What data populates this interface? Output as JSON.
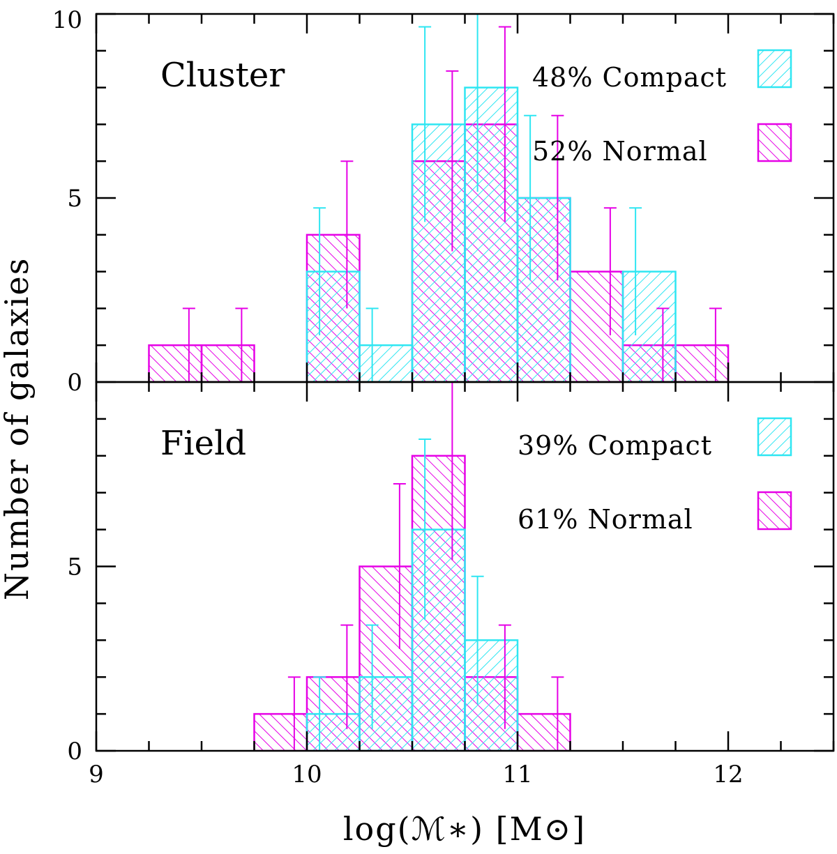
{
  "chart_data": {
    "type": "bar",
    "xlabel": "log(ℳ∗)  [M⊙]",
    "ylabel": "Number of galaxies",
    "xlim": [
      9,
      12.5
    ],
    "x_ticks": [
      "9",
      "10",
      "11",
      "12"
    ],
    "bin_width": 0.25,
    "colors": {
      "compact": "#2ee6f2",
      "normal": "#e600e6"
    },
    "panels": [
      {
        "name": "Cluster",
        "ylim": [
          0,
          10
        ],
        "y_ticks": [
          "0",
          "5",
          "10"
        ],
        "legend": [
          {
            "text": "48% Compact",
            "series": "compact"
          },
          {
            "text": "52% Normal",
            "series": "normal"
          }
        ],
        "series": [
          {
            "name": "compact",
            "bins": [
              {
                "x0": 10.0,
                "value": 3,
                "err": 1.73
              },
              {
                "x0": 10.25,
                "value": 1,
                "err": 1.0
              },
              {
                "x0": 10.5,
                "value": 7,
                "err": 2.65
              },
              {
                "x0": 10.75,
                "value": 8,
                "err": 2.83
              },
              {
                "x0": 11.0,
                "value": 5,
                "err": 2.24
              },
              {
                "x0": 11.5,
                "value": 3,
                "err": 1.73
              }
            ]
          },
          {
            "name": "normal",
            "bins": [
              {
                "x0": 9.25,
                "value": 1,
                "err": 1.0
              },
              {
                "x0": 9.5,
                "value": 1,
                "err": 1.0
              },
              {
                "x0": 10.0,
                "value": 4,
                "err": 2.0
              },
              {
                "x0": 10.5,
                "value": 6,
                "err": 2.45
              },
              {
                "x0": 10.75,
                "value": 7,
                "err": 2.65
              },
              {
                "x0": 11.0,
                "value": 5,
                "err": 2.24
              },
              {
                "x0": 11.25,
                "value": 3,
                "err": 1.73
              },
              {
                "x0": 11.5,
                "value": 1,
                "err": 1.0
              },
              {
                "x0": 11.75,
                "value": 1,
                "err": 1.0
              }
            ]
          }
        ]
      },
      {
        "name": "Field",
        "ylim": [
          0,
          10
        ],
        "y_ticks": [
          "0",
          "5"
        ],
        "legend": [
          {
            "text": "39% Compact",
            "series": "compact"
          },
          {
            "text": "61%  Normal",
            "series": "normal"
          }
        ],
        "series": [
          {
            "name": "compact",
            "bins": [
              {
                "x0": 10.0,
                "value": 1,
                "err": 1.0
              },
              {
                "x0": 10.25,
                "value": 2,
                "err": 1.41
              },
              {
                "x0": 10.5,
                "value": 6,
                "err": 2.45
              },
              {
                "x0": 10.75,
                "value": 3,
                "err": 1.73
              }
            ]
          },
          {
            "name": "normal",
            "bins": [
              {
                "x0": 9.75,
                "value": 1,
                "err": 1.0
              },
              {
                "x0": 10.0,
                "value": 2,
                "err": 1.41
              },
              {
                "x0": 10.25,
                "value": 5,
                "err": 2.24
              },
              {
                "x0": 10.5,
                "value": 8,
                "err": 2.83
              },
              {
                "x0": 10.75,
                "value": 2,
                "err": 1.41
              },
              {
                "x0": 11.0,
                "value": 1,
                "err": 1.0
              }
            ]
          }
        ]
      }
    ]
  }
}
